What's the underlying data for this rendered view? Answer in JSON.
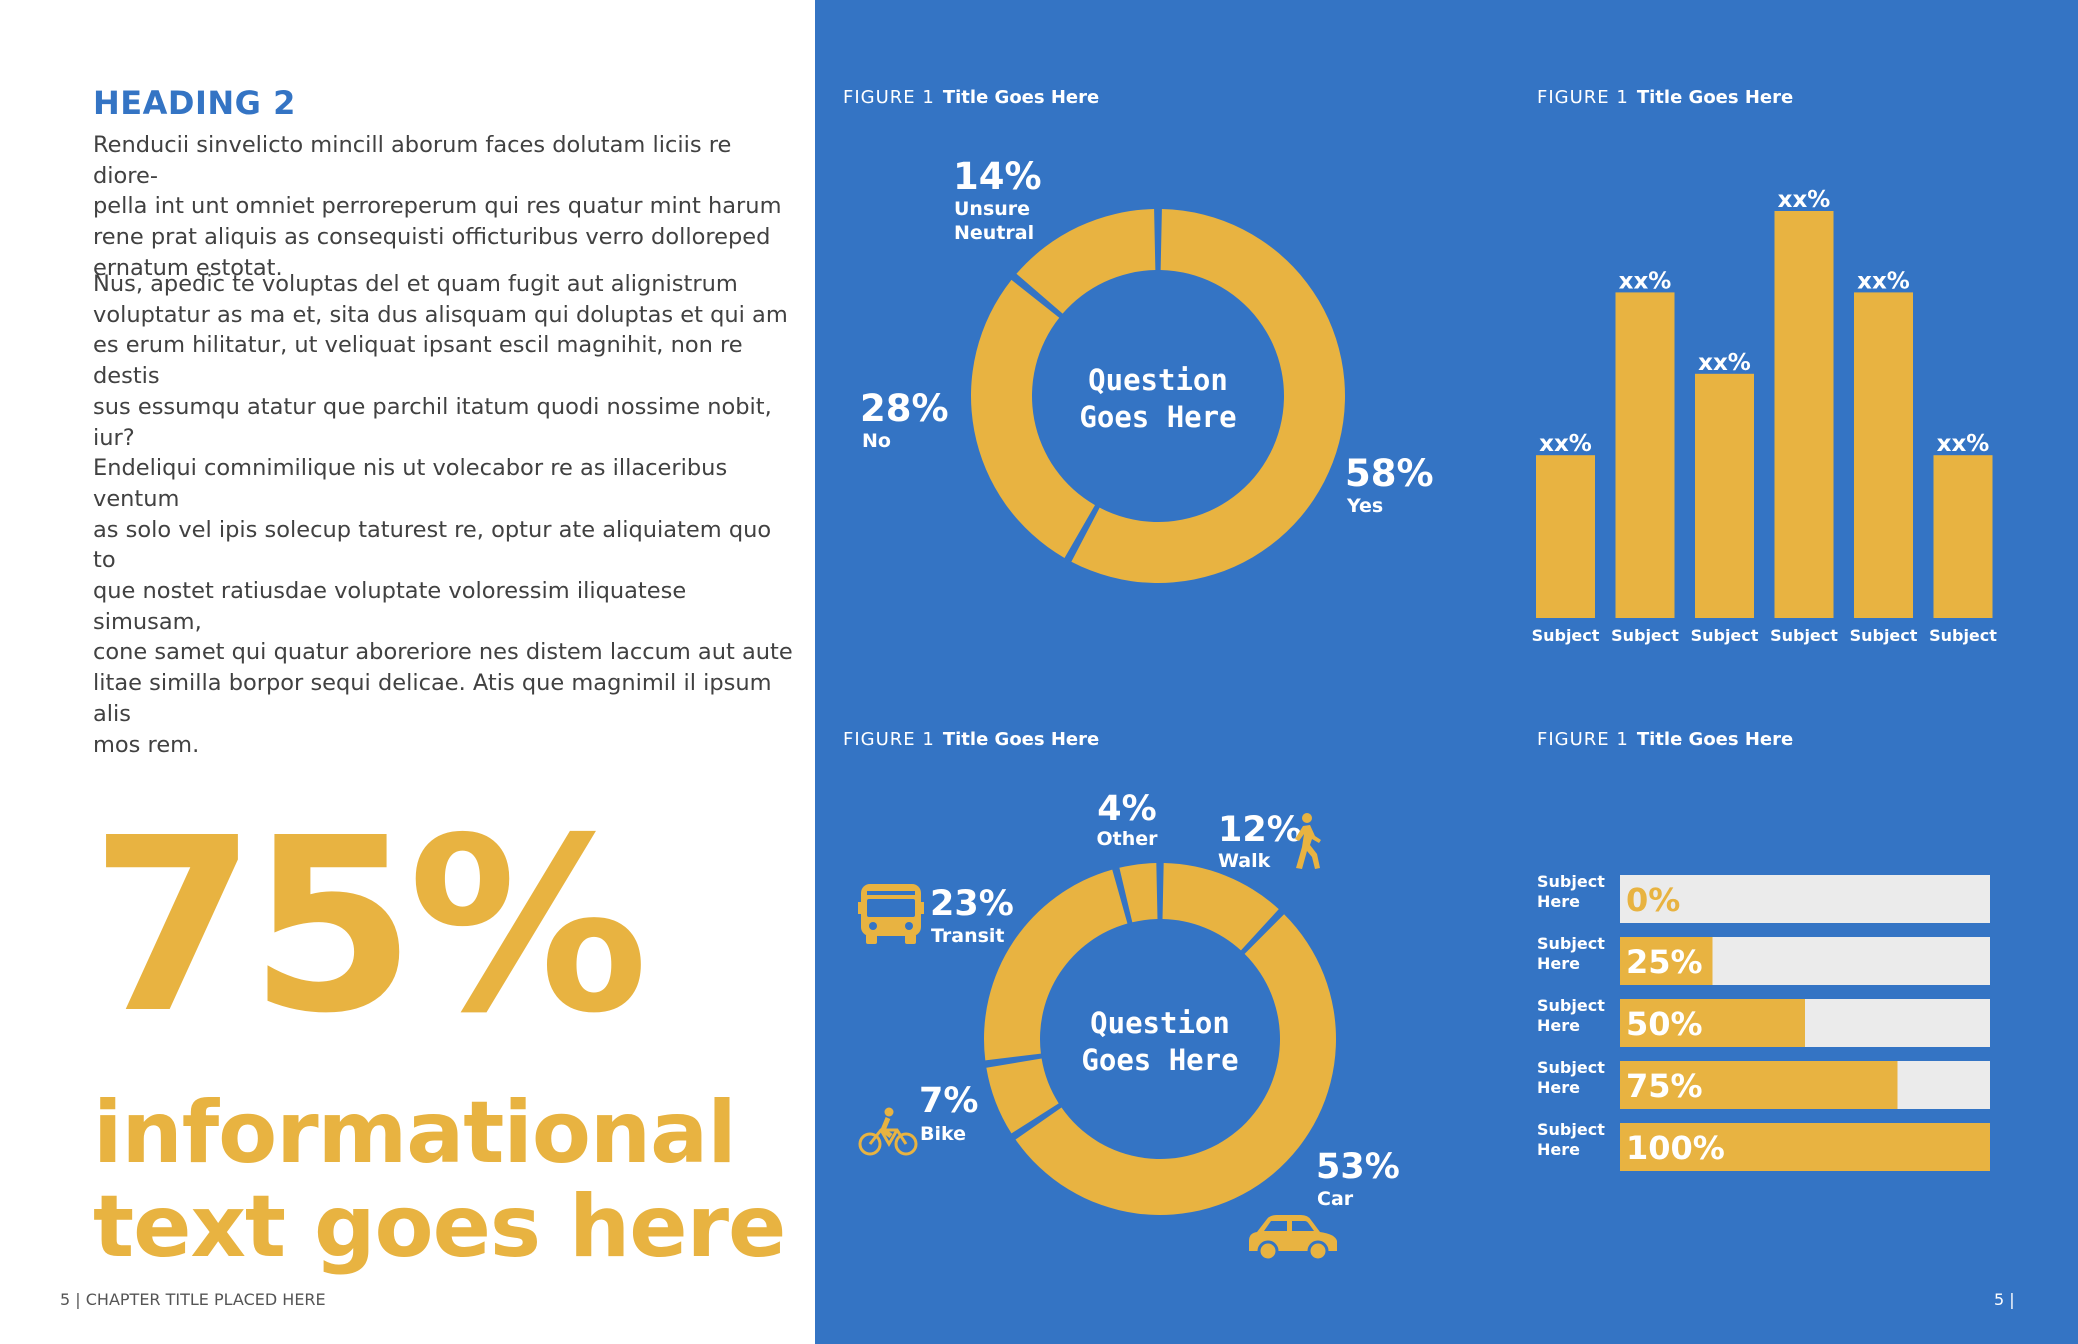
{
  "left_page": {
    "heading": "HEADING 2",
    "paragraph1": "Renducii sinvelicto mincill aborum faces dolutam liciis re diore-\npella int unt omniet perroreperum qui res quatur mint harum\nrene prat aliquis as consequisti officturibus verro dolloreped\nernatum estotat.",
    "paragraph2": "Nus, apedic te voluptas del et quam fugit aut alignistrum\nvoluptatur as ma et, sita dus alisquam qui doluptas et qui am\nes erum hilitatur, ut veliquat ipsant escil magnihit, non re destis\nsus essumqu atatur que parchil itatum quodi nossime nobit, iur?\nEndeliqui comnimilique nis ut volecabor re as illaceribus ventum\nas solo vel ipis solecup taturest re, optur ate aliquiatem quo to\nque nostet ratiusdae voluptate voloressim iliquatese simusam,\ncone samet qui quatur aboreriore nes distem laccum aut aute\nlitae similla borpor sequi delicae. Atis que magnimil il ipsum alis\nmos rem.",
    "big_stat": "75%",
    "big_text": "informational\ntext goes here",
    "footer": "5 |   CHAPTER TITLE PLACED HERE"
  },
  "right_page": {
    "footer": "5 |"
  },
  "colors": {
    "blue": "#3474C4",
    "gold": "#E8B341",
    "track": "#EBEBEB",
    "text_gray": "#414141"
  },
  "figures": {
    "fig1": {
      "label": "FIGURE 1",
      "title": "Title Goes Here"
    },
    "fig2": {
      "label": "FIGURE 1",
      "title": "Title Goes Here"
    },
    "fig3": {
      "label": "FIGURE 1",
      "title": "Title Goes Here"
    },
    "fig4": {
      "label": "FIGURE 1",
      "title": "Title Goes Here"
    }
  },
  "chart_data": [
    {
      "type": "pie",
      "center_text": [
        "Question",
        "Goes Here"
      ],
      "slices": [
        {
          "label": "Yes",
          "label_lines": [
            "Yes"
          ],
          "value": 58,
          "value_label": "58%"
        },
        {
          "label": "No",
          "label_lines": [
            "No"
          ],
          "value": 28,
          "value_label": "28%"
        },
        {
          "label": "Unsure Neutral",
          "label_lines": [
            "Unsure",
            "Neutral"
          ],
          "value": 14,
          "value_label": "14%"
        }
      ]
    },
    {
      "type": "bar",
      "categories": [
        "Subject",
        "Subject",
        "Subject",
        "Subject",
        "Subject",
        "Subject"
      ],
      "values": [
        40,
        80,
        60,
        100,
        80,
        40
      ],
      "value_labels": [
        "xx%",
        "xx%",
        "xx%",
        "xx%",
        "xx%",
        "xx%"
      ],
      "ylim": [
        0,
        100
      ]
    },
    {
      "type": "pie",
      "center_text": [
        "Question",
        "Goes Here"
      ],
      "slices": [
        {
          "label": "Walk",
          "value": 12,
          "value_label": "12%",
          "icon": "walk-icon"
        },
        {
          "label": "Car",
          "value": 53,
          "value_label": "53%",
          "icon": "car-icon"
        },
        {
          "label": "Bike",
          "value": 7,
          "value_label": "7%",
          "icon": "bike-icon"
        },
        {
          "label": "Transit",
          "value": 23,
          "value_label": "23%",
          "icon": "bus-icon"
        },
        {
          "label": "Other",
          "value": 4,
          "value_label": "4%"
        }
      ]
    },
    {
      "type": "bar",
      "orientation": "horizontal",
      "categories": [
        "Subject Here",
        "Subject Here",
        "Subject Here",
        "Subject Here",
        "Subject Here"
      ],
      "category_lines": [
        [
          "Subject",
          "Here"
        ],
        [
          "Subject",
          "Here"
        ],
        [
          "Subject",
          "Here"
        ],
        [
          "Subject",
          "Here"
        ],
        [
          "Subject",
          "Here"
        ]
      ],
      "values": [
        0,
        25,
        50,
        75,
        100
      ],
      "value_labels": [
        "0%",
        "25%",
        "50%",
        "75%",
        "100%"
      ],
      "xlim": [
        0,
        100
      ]
    }
  ]
}
